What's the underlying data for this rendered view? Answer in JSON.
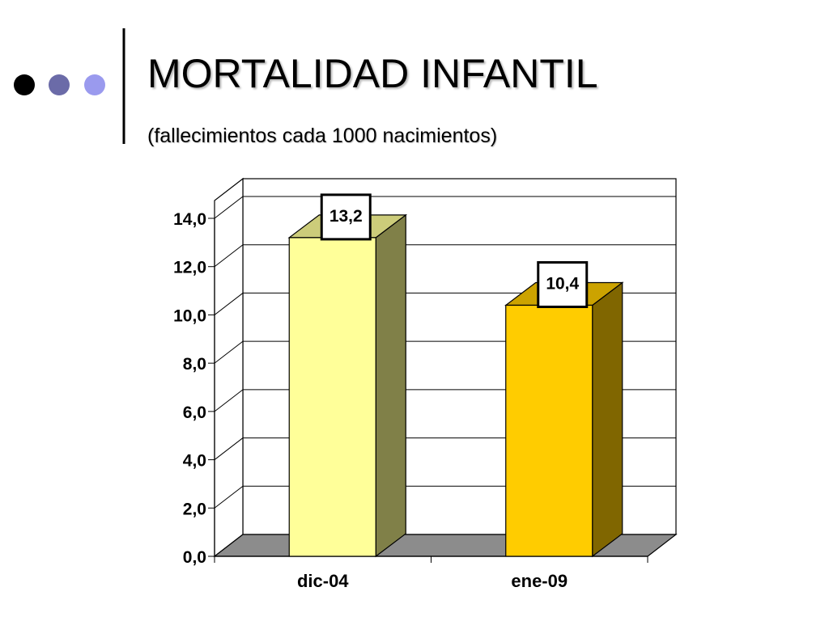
{
  "slide": {
    "title": "MORTALIDAD INFANTIL",
    "subtitle": "(fallecimientos cada 1000 nacimientos)"
  },
  "decoration": {
    "bullet_colors": [
      "#000000",
      "#6b6ba8",
      "#9a9aee"
    ]
  },
  "chart_data": {
    "type": "bar",
    "style": "3d-column",
    "categories": [
      "dic-04",
      "ene-09"
    ],
    "values": [
      13.2,
      10.4
    ],
    "value_labels": [
      "13,2",
      "10,4"
    ],
    "y_ticks": [
      "0,0",
      "2,0",
      "4,0",
      "6,0",
      "8,0",
      "10,0",
      "12,0",
      "14,0"
    ],
    "ylim": [
      0,
      14
    ],
    "grid": true,
    "legend": "none",
    "bar_colors": [
      {
        "front": "#ffff99",
        "top": "#cccc7a",
        "side": "#808048"
      },
      {
        "front": "#ffcc00",
        "top": "#cca300",
        "side": "#806600"
      }
    ],
    "floor_color": "#8c8c8c"
  }
}
